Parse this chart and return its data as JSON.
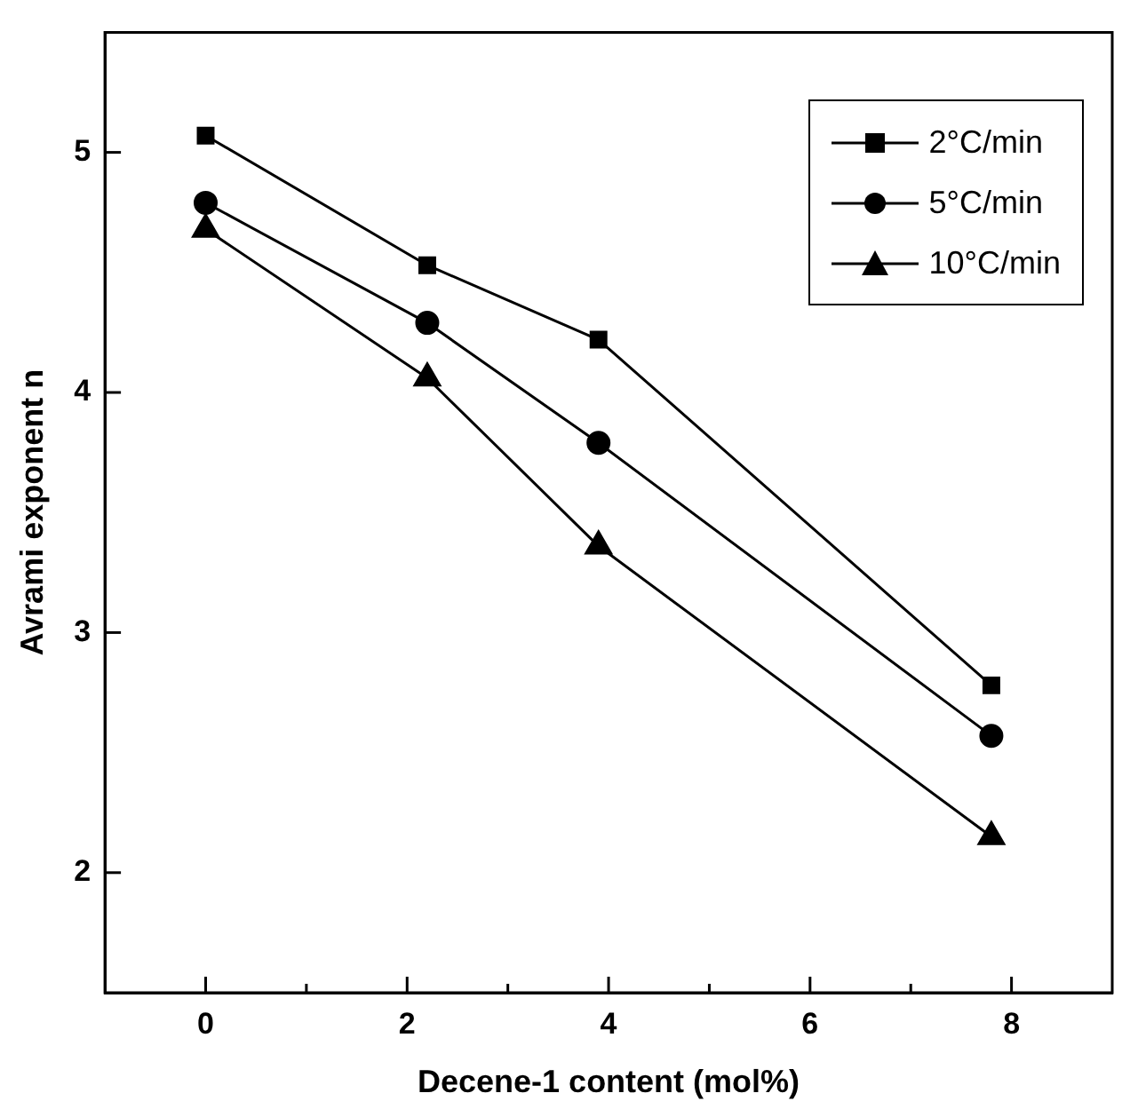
{
  "chart_data": {
    "type": "line",
    "xlabel": "Decene-1 content (mol%)",
    "ylabel": "Avrami exponent n",
    "x": [
      0,
      2.2,
      3.9,
      7.8
    ],
    "series": [
      {
        "name": "2°C/min",
        "color": "#000000",
        "marker": "square",
        "values": [
          5.07,
          4.53,
          4.22,
          2.78
        ]
      },
      {
        "name": "5°C/min",
        "color": "#000000",
        "marker": "circle",
        "values": [
          4.79,
          4.29,
          3.79,
          2.57
        ]
      },
      {
        "name": "10°C/min",
        "color": "#000000",
        "marker": "triangle",
        "values": [
          4.68,
          4.06,
          3.36,
          2.15
        ]
      }
    ],
    "xlim": [
      -1,
      9
    ],
    "xticks": [
      0,
      {
        "value": 1,
        "label": null
      },
      2,
      {
        "value": 3,
        "label": null
      },
      4,
      {
        "value": 5,
        "label": null
      },
      6,
      {
        "value": 7,
        "label": null
      },
      8
    ],
    "ylim": [
      1.5,
      5.5
    ],
    "yticks": [
      2,
      3,
      4,
      5
    ],
    "grid": false,
    "legend": "top right",
    "line_style": "solid"
  }
}
